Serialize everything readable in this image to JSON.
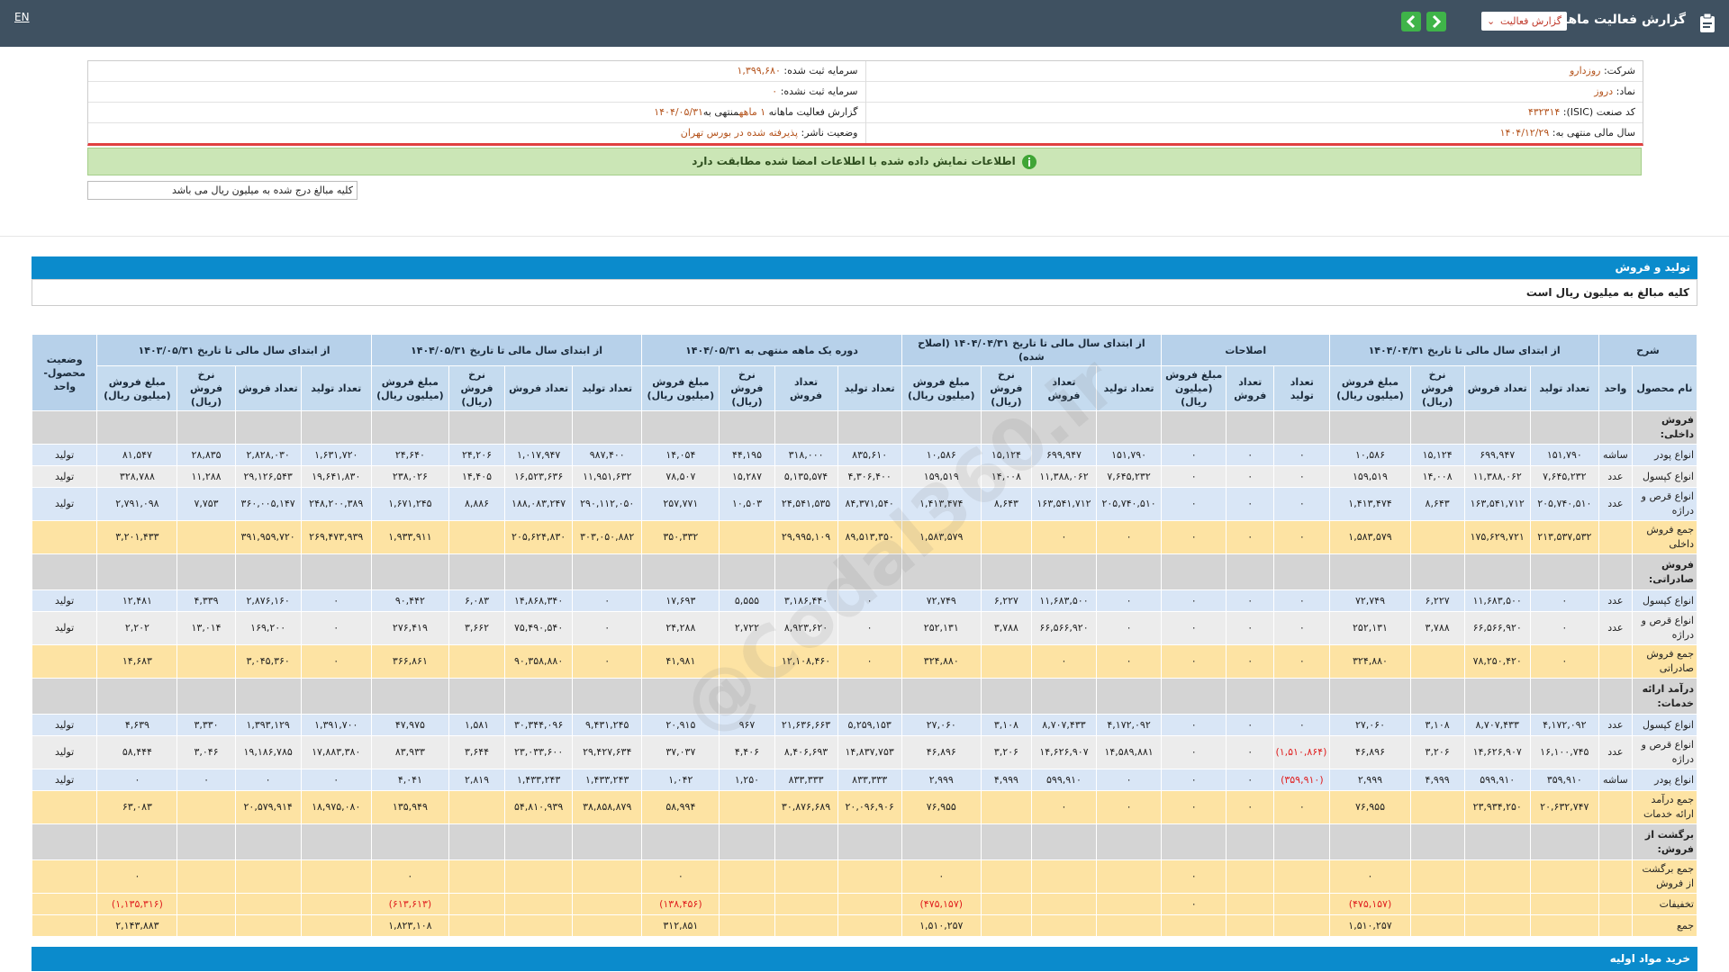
{
  "topbar": {
    "language": "EN",
    "title": "گزارش فعالیت ماهانه",
    "report_select": "گزارش فعالیت"
  },
  "info": {
    "company_label": "شرکت:",
    "company": "روزدارو",
    "symbol_label": "نماد:",
    "symbol": "دروز",
    "isic_label": "کد صنعت (ISIC):",
    "isic": "۴۳۲۳۱۴",
    "fiscal_label": "سال مالی منتهی به:",
    "fiscal": "۱۴۰۴/۱۲/۲۹",
    "capital_label": "سرمایه ثبت شده:",
    "capital": "۱,۳۹۹,۶۸۰",
    "unreg_label": "سرمایه ثبت نشده:",
    "unreg": "۰",
    "period_label": "گزارش فعالیت ماهانه",
    "period": "۱ ماهه",
    "period_mid": "منتهی به",
    "period_date": "۱۴۰۴/۰۵/۳۱",
    "status_label": "وضعیت ناشر:",
    "status": "پذیرفته شده در بورس تهران"
  },
  "verification": "اطلاعات نمایش داده شده با اطلاعات امضا شده مطابقت دارد",
  "note": "کلیه مبالغ درج شده به میلیون ریال می باشد",
  "watermark": "@Codal360.ir",
  "section": {
    "title": "تولید و فروش",
    "subtitle": "کلیه مبالغ به میلیون ریال است"
  },
  "table": {
    "header": {
      "groups": [
        {
          "title": "شرح",
          "columns": [
            "نام محصول",
            "واحد"
          ]
        },
        {
          "title": "از ابتدای سال مالی تا تاریخ ۱۴۰۴/۰۴/۳۱",
          "columns": [
            "تعداد تولید",
            "تعداد فروش",
            "نرخ فروش (ریال)",
            "مبلغ فروش (میلیون ریال)"
          ]
        },
        {
          "title": "اصلاحات",
          "columns": [
            "تعداد تولید",
            "تعداد فروش",
            "مبلغ فروش (میلیون ریال)"
          ]
        },
        {
          "title": "از ابتدای سال مالی تا تاریخ ۱۴۰۴/۰۴/۳۱ (اصلاح شده)",
          "columns": [
            "تعداد تولید",
            "تعداد فروش",
            "نرخ فروش (ریال)",
            "مبلغ فروش (میلیون ریال)"
          ]
        },
        {
          "title": "دوره یک ماهه منتهی به ۱۴۰۴/۰۵/۳۱",
          "columns": [
            "تعداد تولید",
            "تعداد فروش",
            "نرخ فروش (ریال)",
            "مبلغ فروش (میلیون ریال)"
          ]
        },
        {
          "title": "از ابتدای سال مالی تا تاریخ ۱۴۰۴/۰۵/۳۱",
          "columns": [
            "تعداد تولید",
            "تعداد فروش",
            "نرخ فروش (ریال)",
            "مبلغ فروش (میلیون ریال)"
          ]
        },
        {
          "title": "از ابتدای سال مالی تا تاریخ ۱۴۰۳/۰۵/۳۱",
          "columns": [
            "تعداد تولید",
            "تعداد فروش",
            "نرخ فروش (ریال)",
            "مبلغ فروش (میلیون ریال)"
          ]
        }
      ],
      "status_column": "وضعیت محصول-واحد"
    },
    "sections": [
      {
        "title": "فروش داخلی:",
        "rows": [
          [
            "انواع پودر",
            "ساشه",
            "۱۵۱,۷۹۰",
            "۶۹۹,۹۴۷",
            "۱۵,۱۲۴",
            "۱۰,۵۸۶",
            "۰",
            "۰",
            "۰",
            "۱۵۱,۷۹۰",
            "۶۹۹,۹۴۷",
            "۱۵,۱۲۴",
            "۱۰,۵۸۶",
            "۸۳۵,۶۱۰",
            "۳۱۸,۰۰۰",
            "۴۴,۱۹۵",
            "۱۴,۰۵۴",
            "۹۸۷,۴۰۰",
            "۱,۰۱۷,۹۴۷",
            "۲۴,۲۰۶",
            "۲۴,۶۴۰",
            "۱,۶۳۱,۷۲۰",
            "۲,۸۲۸,۰۳۰",
            "۲۸,۸۳۵",
            "۸۱,۵۴۷",
            "تولید"
          ],
          [
            "انواع کپسول",
            "عدد",
            "۷,۶۴۵,۲۳۲",
            "۱۱,۳۸۸,۰۶۲",
            "۱۴,۰۰۸",
            "۱۵۹,۵۱۹",
            "۰",
            "۰",
            "۰",
            "۷,۶۴۵,۲۳۲",
            "۱۱,۳۸۸,۰۶۲",
            "۱۴,۰۰۸",
            "۱۵۹,۵۱۹",
            "۴,۳۰۶,۴۰۰",
            "۵,۱۳۵,۵۷۴",
            "۱۵,۲۸۷",
            "۷۸,۵۰۷",
            "۱۱,۹۵۱,۶۳۲",
            "۱۶,۵۲۳,۶۳۶",
            "۱۴,۴۰۵",
            "۲۳۸,۰۲۶",
            "۱۹,۶۴۱,۸۳۰",
            "۲۹,۱۲۶,۵۴۳",
            "۱۱,۲۸۸",
            "۳۲۸,۷۸۸",
            "تولید"
          ],
          [
            "انواع قرص و دراژه",
            "عدد",
            "۲۰۵,۷۴۰,۵۱۰",
            "۱۶۳,۵۴۱,۷۱۲",
            "۸,۶۴۳",
            "۱,۴۱۳,۴۷۴",
            "۰",
            "۰",
            "۰",
            "۲۰۵,۷۴۰,۵۱۰",
            "۱۶۳,۵۴۱,۷۱۲",
            "۸,۶۴۳",
            "۱,۴۱۳,۴۷۴",
            "۸۴,۳۷۱,۵۴۰",
            "۲۴,۵۴۱,۵۳۵",
            "۱۰,۵۰۳",
            "۲۵۷,۷۷۱",
            "۲۹۰,۱۱۲,۰۵۰",
            "۱۸۸,۰۸۳,۲۴۷",
            "۸,۸۸۶",
            "۱,۶۷۱,۲۴۵",
            "۲۴۸,۲۰۰,۳۸۹",
            "۳۶۰,۰۰۵,۱۴۷",
            "۷,۷۵۳",
            "۲,۷۹۱,۰۹۸",
            "تولید"
          ]
        ],
        "total": [
          "جمع فروش داخلی",
          null,
          "۲۱۳,۵۳۷,۵۳۲",
          "۱۷۵,۶۲۹,۷۲۱",
          null,
          "۱,۵۸۳,۵۷۹",
          "۰",
          "۰",
          "۰",
          "۰",
          "۰",
          null,
          "۱,۵۸۳,۵۷۹",
          "۸۹,۵۱۳,۳۵۰",
          "۲۹,۹۹۵,۱۰۹",
          null,
          "۳۵۰,۳۳۲",
          "۳۰۳,۰۵۰,۸۸۲",
          "۲۰۵,۶۲۴,۸۳۰",
          null,
          "۱,۹۳۳,۹۱۱",
          "۲۶۹,۴۷۳,۹۳۹",
          "۳۹۱,۹۵۹,۷۲۰",
          null,
          "۳,۲۰۱,۴۳۳",
          null
        ]
      },
      {
        "title": "فروش صادراتی:",
        "rows": [
          [
            "انواع کپسول",
            "عدد",
            "۰",
            "۱۱,۶۸۳,۵۰۰",
            "۶,۲۲۷",
            "۷۲,۷۴۹",
            "۰",
            "۰",
            "۰",
            "۰",
            "۱۱,۶۸۳,۵۰۰",
            "۶,۲۲۷",
            "۷۲,۷۴۹",
            "۰",
            "۳,۱۸۶,۴۴۰",
            "۵,۵۵۵",
            "۱۷,۶۹۳",
            "۰",
            "۱۴,۸۶۸,۳۴۰",
            "۶,۰۸۳",
            "۹۰,۴۴۲",
            "۰",
            "۲,۸۷۶,۱۶۰",
            "۴,۳۳۹",
            "۱۲,۴۸۱",
            "تولید"
          ],
          [
            "انواع قرص و دراژه",
            "عدد",
            "۰",
            "۶۶,۵۶۶,۹۲۰",
            "۳,۷۸۸",
            "۲۵۲,۱۳۱",
            "۰",
            "۰",
            "۰",
            "۰",
            "۶۶,۵۶۶,۹۲۰",
            "۳,۷۸۸",
            "۲۵۲,۱۳۱",
            "۰",
            "۸,۹۲۳,۶۲۰",
            "۲,۷۲۲",
            "۲۴,۲۸۸",
            "۰",
            "۷۵,۴۹۰,۵۴۰",
            "۳,۶۶۲",
            "۲۷۶,۴۱۹",
            "۰",
            "۱۶۹,۲۰۰",
            "۱۳,۰۱۴",
            "۲,۲۰۲",
            "تولید"
          ]
        ],
        "total": [
          "جمع فروش صادراتی",
          null,
          "۰",
          "۷۸,۲۵۰,۴۲۰",
          null,
          "۳۲۴,۸۸۰",
          "۰",
          "۰",
          "۰",
          "۰",
          "۰",
          null,
          "۳۲۴,۸۸۰",
          "۰",
          "۱۲,۱۰۸,۴۶۰",
          null,
          "۴۱,۹۸۱",
          "۰",
          "۹۰,۳۵۸,۸۸۰",
          null,
          "۳۶۶,۸۶۱",
          "۰",
          "۳,۰۴۵,۳۶۰",
          null,
          "۱۴,۶۸۳",
          null
        ]
      },
      {
        "title": "درآمد ارائه خدمات:",
        "rows": [
          [
            "انواع کپسول",
            "عدد",
            "۴,۱۷۲,۰۹۲",
            "۸,۷۰۷,۴۳۳",
            "۳,۱۰۸",
            "۲۷,۰۶۰",
            "۰",
            "۰",
            "۰",
            "۴,۱۷۲,۰۹۲",
            "۸,۷۰۷,۴۳۳",
            "۳,۱۰۸",
            "۲۷,۰۶۰",
            "۵,۲۵۹,۱۵۳",
            "۲۱,۶۳۶,۶۶۳",
            "۹۶۷",
            "۲۰,۹۱۵",
            "۹,۴۳۱,۲۴۵",
            "۳۰,۳۴۴,۰۹۶",
            "۱,۵۸۱",
            "۴۷,۹۷۵",
            "۱,۳۹۱,۷۰۰",
            "۱,۳۹۳,۱۲۹",
            "۳,۳۳۰",
            "۴,۶۳۹",
            "تولید"
          ],
          [
            "انواع قرص و دراژه",
            "عدد",
            "۱۶,۱۰۰,۷۴۵",
            "۱۴,۶۲۶,۹۰۷",
            "۳,۲۰۶",
            "۴۶,۸۹۶",
            "(۱,۵۱۰,۸۶۴)",
            "۰",
            "۰",
            "۱۴,۵۸۹,۸۸۱",
            "۱۴,۶۲۶,۹۰۷",
            "۳,۲۰۶",
            "۴۶,۸۹۶",
            "۱۴,۸۳۷,۷۵۳",
            "۸,۴۰۶,۶۹۳",
            "۴,۴۰۶",
            "۳۷,۰۳۷",
            "۲۹,۴۲۷,۶۳۴",
            "۲۳,۰۳۳,۶۰۰",
            "۳,۶۴۴",
            "۸۳,۹۳۳",
            "۱۷,۸۸۳,۳۸۰",
            "۱۹,۱۸۶,۷۸۵",
            "۳,۰۴۶",
            "۵۸,۴۴۴",
            "تولید"
          ],
          [
            "انواع پودر",
            "ساشه",
            "۳۵۹,۹۱۰",
            "۵۹۹,۹۱۰",
            "۴,۹۹۹",
            "۲,۹۹۹",
            "(۳۵۹,۹۱۰)",
            "۰",
            "۰",
            "۰",
            "۵۹۹,۹۱۰",
            "۴,۹۹۹",
            "۲,۹۹۹",
            "۸۳۳,۳۳۳",
            "۸۳۳,۳۳۳",
            "۱,۲۵۰",
            "۱,۰۴۲",
            "۱,۴۳۳,۲۴۳",
            "۱,۴۳۳,۲۴۳",
            "۲,۸۱۹",
            "۴,۰۴۱",
            "۰",
            "۰",
            "۰",
            "۰",
            "تولید"
          ]
        ],
        "total": [
          "جمع درآمد ارائه خدمات",
          null,
          "۲۰,۶۳۲,۷۴۷",
          "۲۳,۹۳۴,۲۵۰",
          null,
          "۷۶,۹۵۵",
          "۰",
          "۰",
          "۰",
          "۰",
          "۰",
          null,
          "۷۶,۹۵۵",
          "۲۰,۰۹۶,۹۰۶",
          "۳۰,۸۷۶,۶۸۹",
          null,
          "۵۸,۹۹۴",
          "۳۸,۸۵۸,۸۷۹",
          "۵۴,۸۱۰,۹۳۹",
          null,
          "۱۳۵,۹۴۹",
          "۱۸,۹۷۵,۰۸۰",
          "۲۰,۵۷۹,۹۱۴",
          null,
          "۶۳,۰۸۳",
          null
        ]
      },
      {
        "title": "برگشت از فروش:",
        "rows": [],
        "total": [
          "جمع برگشت از فروش",
          null,
          null,
          null,
          null,
          "۰",
          null,
          null,
          "۰",
          null,
          null,
          null,
          "۰",
          null,
          null,
          null,
          "۰",
          null,
          null,
          null,
          "۰",
          null,
          null,
          null,
          "۰",
          null
        ]
      }
    ],
    "footer_rows": [
      [
        "تخفیفات",
        null,
        null,
        null,
        null,
        "(۴۷۵,۱۵۷)",
        null,
        null,
        "۰",
        null,
        null,
        null,
        "(۴۷۵,۱۵۷)",
        null,
        null,
        null,
        "(۱۳۸,۴۵۶)",
        null,
        null,
        null,
        "(۶۱۳,۶۱۳)",
        null,
        null,
        null,
        "(۱,۱۳۵,۳۱۶)",
        null
      ],
      [
        "جمع",
        null,
        null,
        null,
        null,
        "۱,۵۱۰,۲۵۷",
        null,
        null,
        null,
        null,
        null,
        null,
        "۱,۵۱۰,۲۵۷",
        null,
        null,
        null,
        "۳۱۲,۸۵۱",
        null,
        null,
        null,
        "۱,۸۲۳,۱۰۸",
        null,
        null,
        null,
        "۲,۱۴۳,۸۸۳",
        null
      ]
    ]
  },
  "next_section": "خرید مواد اولیه"
}
